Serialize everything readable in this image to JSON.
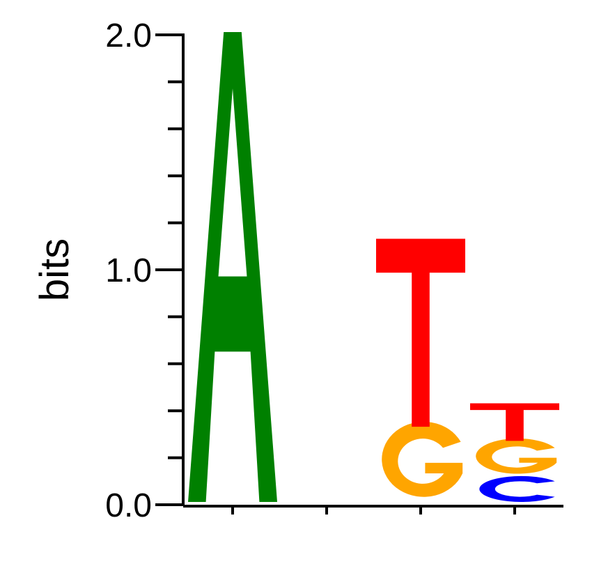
{
  "chart_data": {
    "type": "sequence-logo",
    "title": "",
    "xlabel": "",
    "ylabel": "bits",
    "ylim": [
      0,
      2
    ],
    "y_ticks": [
      "0.0",
      "1.0",
      "2.0"
    ],
    "positions": [
      {
        "position": 1,
        "letters": [
          {
            "letter": "A",
            "height": 2.0
          }
        ]
      },
      {
        "position": 2,
        "letters": []
      },
      {
        "position": 3,
        "letters": [
          {
            "letter": "G",
            "height": 0.32
          },
          {
            "letter": "T",
            "height": 0.8
          }
        ]
      },
      {
        "position": 4,
        "letters": [
          {
            "letter": "C",
            "height": 0.11
          },
          {
            "letter": "G",
            "height": 0.15
          },
          {
            "letter": "T",
            "height": 0.16
          }
        ]
      }
    ],
    "colors": {
      "A": "#008000",
      "C": "#0000ff",
      "G": "#ffa500",
      "T": "#ff0000"
    }
  }
}
